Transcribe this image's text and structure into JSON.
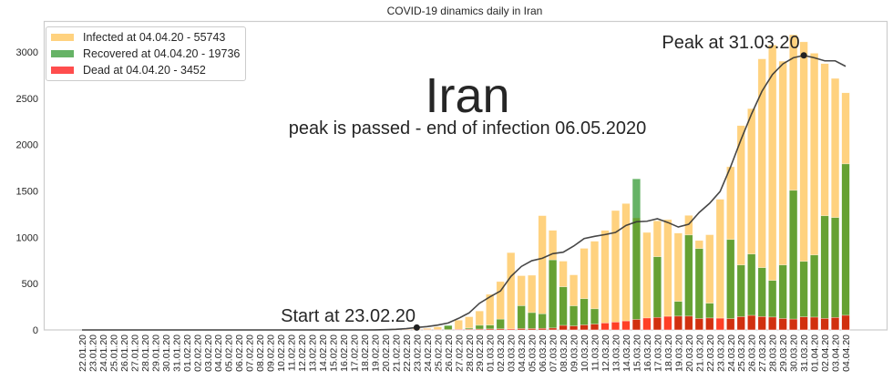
{
  "chart_data": {
    "type": "bar",
    "title": "COVID-19 dinamics daily in Iran",
    "xlabel": "",
    "ylabel": "",
    "ylim": [
      0,
      3320
    ],
    "yticks": [
      0,
      500,
      1000,
      1500,
      2000,
      2500,
      3000
    ],
    "grid": false,
    "legend_position": "top-left",
    "categories": [
      "22.01.20",
      "23.01.20",
      "24.01.20",
      "25.01.20",
      "26.01.20",
      "27.01.20",
      "28.01.20",
      "29.01.20",
      "30.01.20",
      "31.01.20",
      "01.02.20",
      "02.02.20",
      "03.02.20",
      "04.02.20",
      "05.02.20",
      "06.02.20",
      "07.02.20",
      "08.02.20",
      "09.02.20",
      "10.02.20",
      "11.02.20",
      "12.02.20",
      "13.02.20",
      "14.02.20",
      "15.02.20",
      "16.02.20",
      "17.02.20",
      "18.02.20",
      "19.02.20",
      "20.02.20",
      "21.02.20",
      "22.02.20",
      "23.02.20",
      "24.02.20",
      "25.02.20",
      "26.02.20",
      "27.02.20",
      "28.02.20",
      "29.02.20",
      "01.03.20",
      "02.03.20",
      "03.03.20",
      "04.03.20",
      "05.03.20",
      "06.03.20",
      "07.03.20",
      "08.03.20",
      "09.03.20",
      "10.03.20",
      "11.03.20",
      "12.03.20",
      "13.03.20",
      "14.03.20",
      "15.03.20",
      "16.03.20",
      "17.03.20",
      "18.03.20",
      "19.03.20",
      "20.03.20",
      "21.03.20",
      "22.03.20",
      "23.03.20",
      "24.03.20",
      "25.03.20",
      "26.03.20",
      "27.03.20",
      "28.03.20",
      "29.03.20",
      "30.03.20",
      "31.03.20",
      "01.04.20",
      "02.04.20",
      "03.04.20",
      "04.04.20"
    ],
    "series": [
      {
        "name": "Infected at 04.04.20 - 55743",
        "kind": "bar",
        "color": "#ffa500",
        "values": [
          0,
          0,
          0,
          0,
          0,
          0,
          0,
          0,
          0,
          0,
          0,
          0,
          0,
          0,
          0,
          0,
          0,
          0,
          0,
          0,
          0,
          0,
          0,
          0,
          0,
          0,
          0,
          0,
          2,
          3,
          13,
          10,
          15,
          18,
          34,
          44,
          106,
          143,
          205,
          385,
          523,
          835,
          586,
          591,
          1234,
          1076,
          743,
          595,
          881,
          958,
          1075,
          1289,
          1365,
          1209,
          1053,
          1178,
          1192,
          1046,
          1237,
          966,
          1028,
          1411,
          1762,
          2206,
          2389,
          2926,
          3076,
          2901,
          3186,
          3110,
          2987,
          2875,
          2715,
          2560
        ]
      },
      {
        "name": "Recovered at 04.04.20 - 19736",
        "kind": "bar",
        "color": "#008000",
        "values": [
          0,
          0,
          0,
          0,
          0,
          0,
          0,
          0,
          0,
          0,
          0,
          0,
          0,
          0,
          0,
          0,
          0,
          0,
          0,
          0,
          0,
          0,
          0,
          0,
          0,
          0,
          0,
          0,
          0,
          0,
          0,
          0,
          0,
          0,
          0,
          49,
          0,
          20,
          50,
          52,
          116,
          0,
          261,
          187,
          174,
          756,
          465,
          260,
          337,
          228,
          0,
          0,
          0,
          1631,
          0,
          790,
          0,
          308,
          1025,
          878,
          288,
          0,
          976,
          701,
          819,
          672,
          534,
          701,
          1507,
          740,
          809,
          1232,
          1213,
          1792
        ]
      },
      {
        "name": "Dead at 04.04.20 - 3452",
        "kind": "bar",
        "color": "#ff0000",
        "values": [
          0,
          0,
          0,
          0,
          0,
          0,
          0,
          0,
          0,
          0,
          0,
          0,
          0,
          0,
          0,
          0,
          0,
          0,
          0,
          0,
          0,
          0,
          0,
          0,
          0,
          0,
          0,
          0,
          2,
          0,
          2,
          1,
          3,
          4,
          4,
          3,
          7,
          8,
          9,
          11,
          12,
          11,
          15,
          15,
          17,
          21,
          49,
          43,
          54,
          63,
          75,
          85,
          97,
          113,
          129,
          135,
          147,
          149,
          149,
          123,
          129,
          127,
          122,
          143,
          157,
          144,
          139,
          123,
          117,
          141,
          138,
          124,
          134,
          158
        ]
      },
      {
        "kind": "line",
        "color": "#333333",
        "values": [
          0,
          0,
          0,
          0,
          0,
          0,
          0,
          0,
          0,
          0,
          0,
          0,
          0,
          0,
          0,
          0,
          0,
          0,
          0,
          0,
          0,
          0,
          0,
          0,
          0,
          0,
          0,
          0,
          1,
          3,
          7,
          14,
          26,
          36,
          52,
          75,
          125,
          184,
          288,
          357,
          420,
          577,
          685,
          747,
          773,
          823,
          839,
          905,
          986,
          1010,
          1029,
          1052,
          1128,
          1167,
          1173,
          1200,
          1160,
          1111,
          1141,
          1268,
          1367,
          1495,
          1760,
          2055,
          2330,
          2576,
          2756,
          2871,
          2937,
          2963,
          2937,
          2904,
          2904,
          2845
        ]
      }
    ],
    "annotations": [
      {
        "text": "Iran",
        "role": "big-label"
      },
      {
        "text": "peak is passed - end of infection 06.05.2020",
        "role": "subtitle"
      },
      {
        "text": "Start at 23.02.20",
        "marker_category": "23.02.20",
        "marker_value": 26
      },
      {
        "text": "Peak at 31.03.20",
        "marker_category": "31.03.20",
        "marker_value": 2963
      }
    ]
  }
}
